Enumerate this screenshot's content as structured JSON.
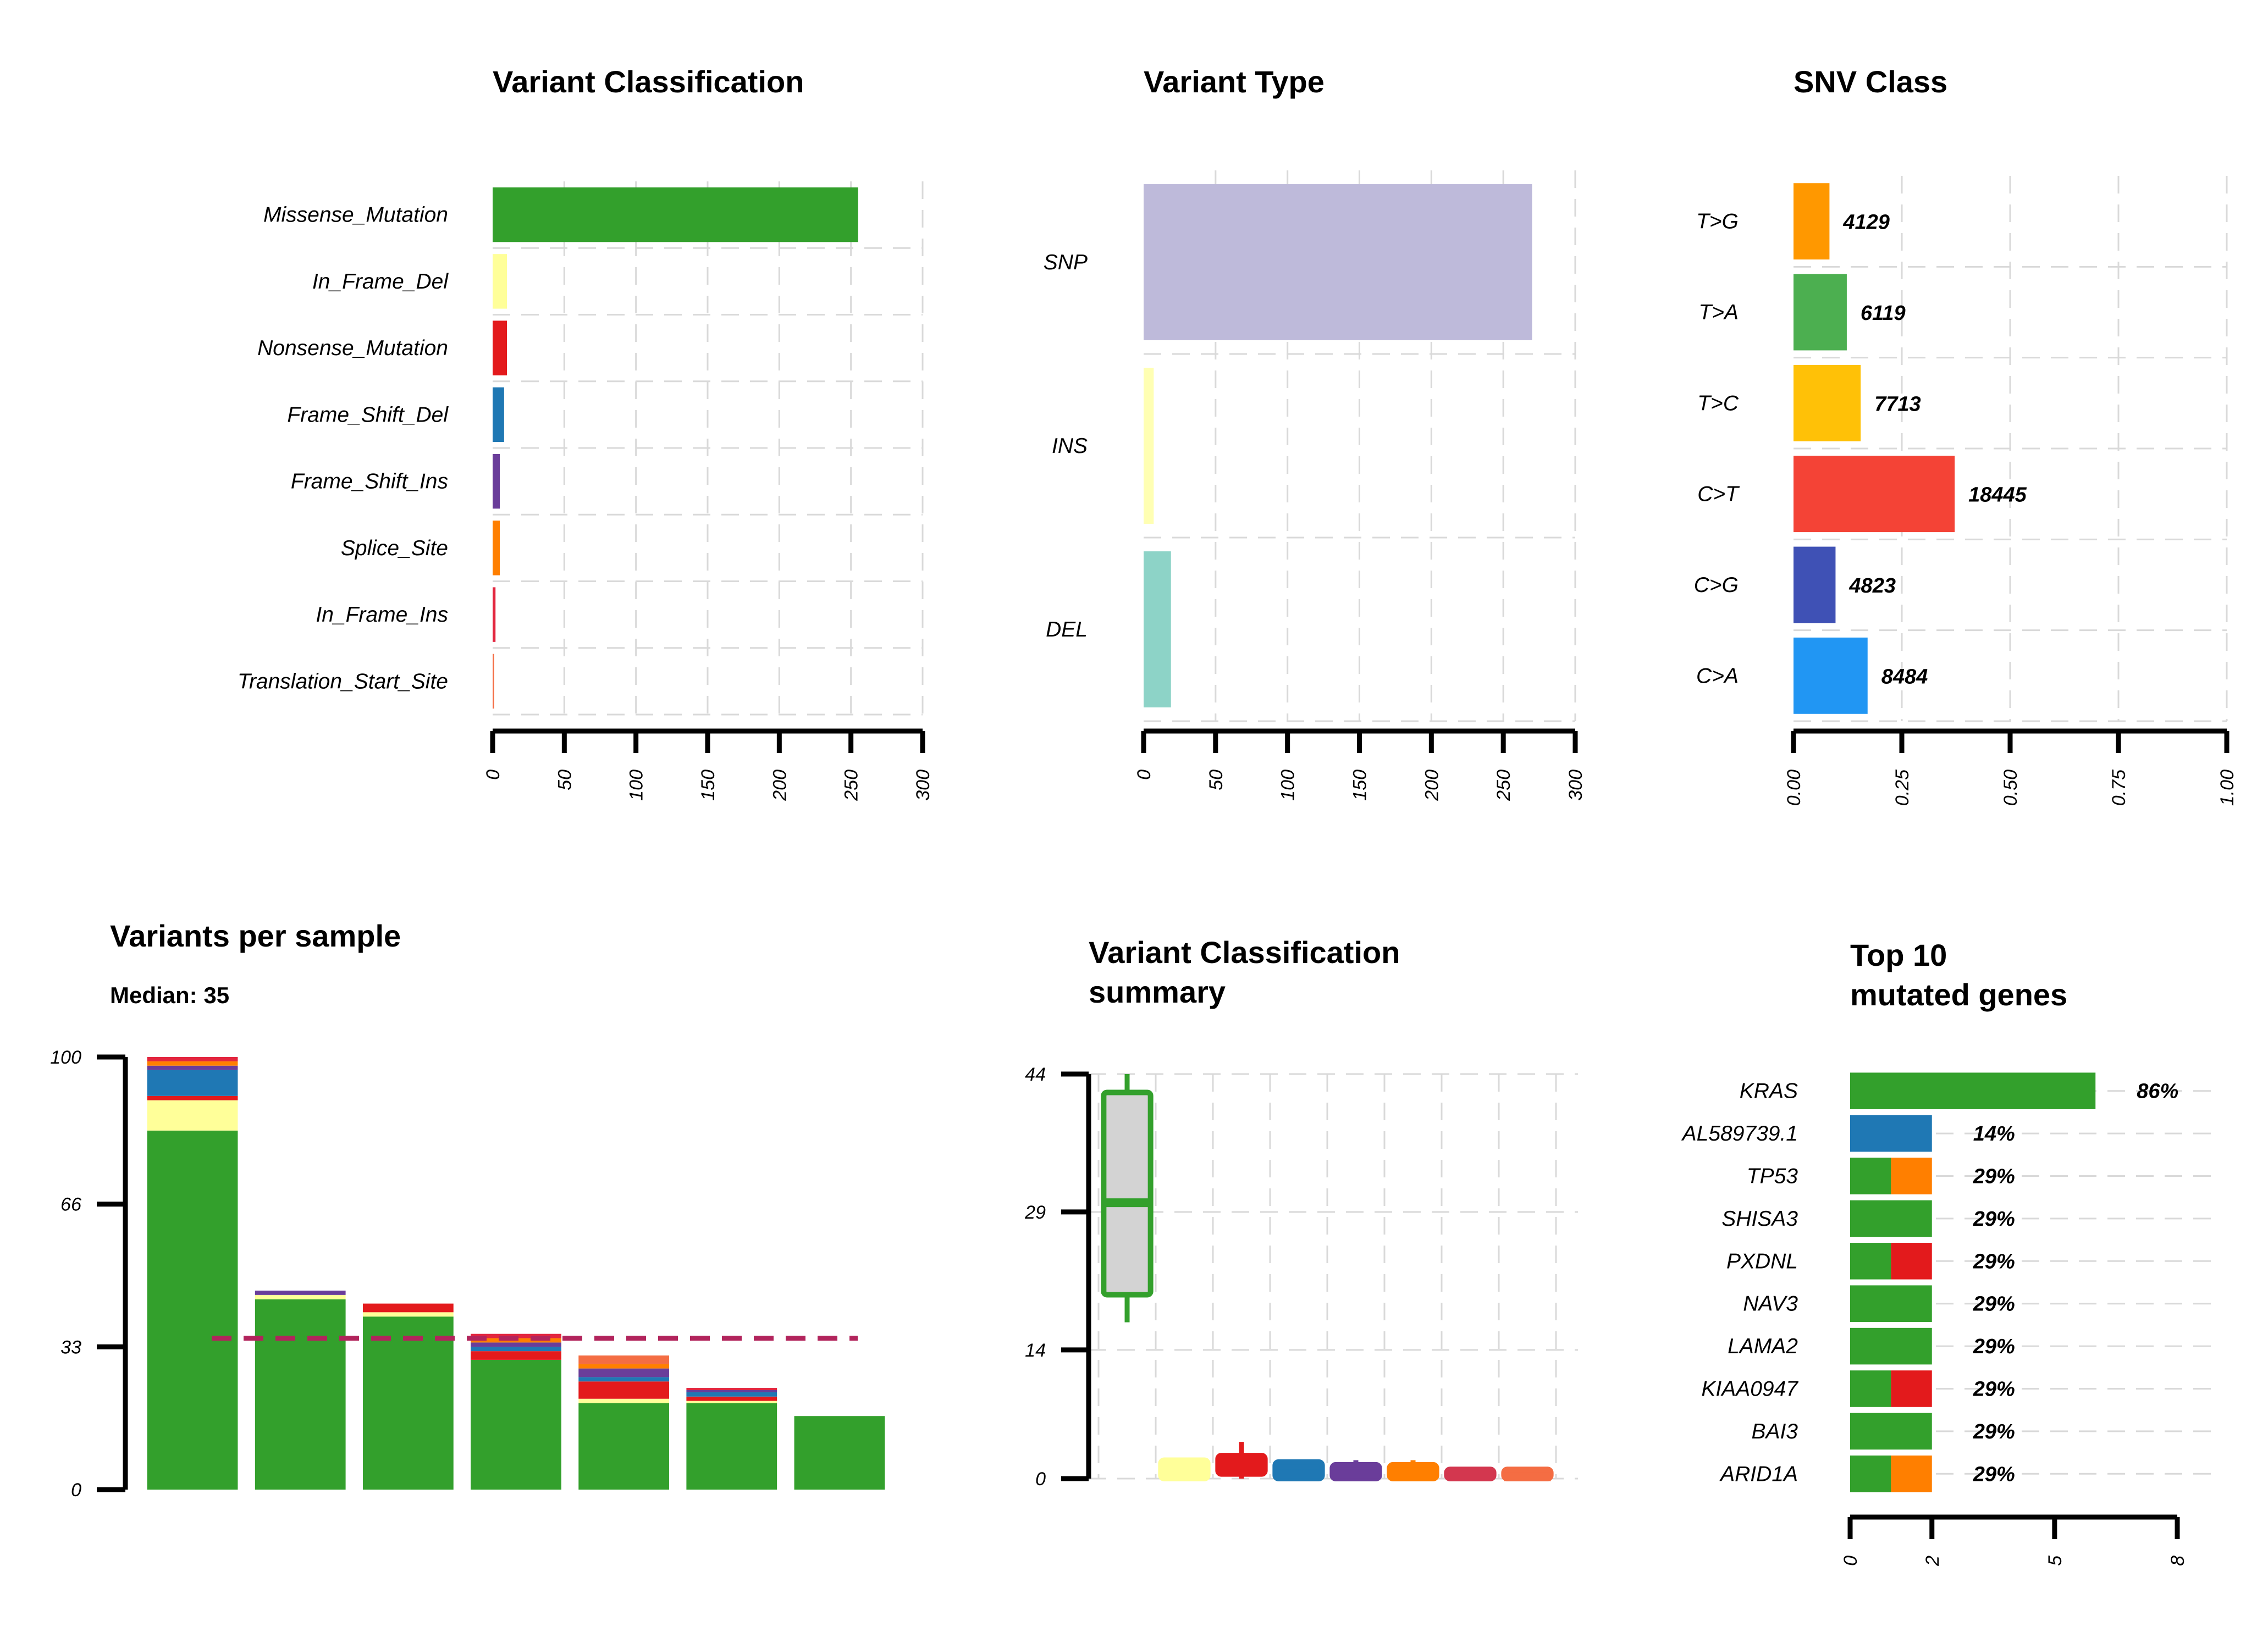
{
  "chart_data": [
    {
      "type": "bar",
      "title": "Variant Classification",
      "orientation": "horizontal",
      "categories": [
        "Missense_Mutation",
        "In_Frame_Del",
        "Nonsense_Mutation",
        "Frame_Shift_Del",
        "Frame_Shift_Ins",
        "Splice_Site",
        "In_Frame_Ins",
        "Translation_Start_Site"
      ],
      "values": [
        255,
        10,
        10,
        8,
        5,
        5,
        2,
        1
      ],
      "colors": [
        "#33a02c",
        "#ffff99",
        "#e31a1c",
        "#1f78b4",
        "#6a3d9a",
        "#ff7f00",
        "#e3263f",
        "#f46d43"
      ],
      "xlim": [
        0,
        300
      ],
      "xticks": [
        "0",
        "50",
        "100",
        "150",
        "200",
        "250",
        "300"
      ]
    },
    {
      "type": "bar",
      "title": "Variant Type",
      "orientation": "horizontal",
      "categories": [
        "SNP",
        "INS",
        "DEL"
      ],
      "values": [
        270,
        7,
        19
      ],
      "colors": [
        "#bebada",
        "#ffffb3",
        "#8dd3c7"
      ],
      "xlim": [
        0,
        300
      ],
      "xticks": [
        "0",
        "50",
        "100",
        "150",
        "200",
        "250",
        "300"
      ]
    },
    {
      "type": "bar",
      "title": "SNV Class",
      "orientation": "horizontal",
      "categories": [
        "T>G",
        "T>A",
        "T>C",
        "C>T",
        "C>G",
        "C>A"
      ],
      "values": [
        0.083,
        0.123,
        0.155,
        0.372,
        0.097,
        0.171
      ],
      "labels": [
        "4129",
        "6119",
        "7713",
        "18445",
        "4823",
        "8484"
      ],
      "colors": [
        "#ff9800",
        "#4caf50",
        "#ffc107",
        "#f44336",
        "#3f51b5",
        "#2196f3"
      ],
      "xlim": [
        0,
        1
      ],
      "xticks": [
        "0.00",
        "0.25",
        "0.50",
        "0.75",
        "1.00"
      ]
    },
    {
      "type": "bar",
      "stacked": true,
      "title": "Variants per sample",
      "subtitle": "Median: 35",
      "ylim": [
        0,
        100
      ],
      "yticks": [
        "0",
        "33",
        "66",
        "100"
      ],
      "median": 35,
      "median_color": "#b2245c",
      "segment_colors": {
        "Missense_Mutation": "#33a02c",
        "In_Frame_Del": "#ffff99",
        "Nonsense_Mutation": "#e31a1c",
        "Frame_Shift_Del": "#1f78b4",
        "Frame_Shift_Ins": "#6a3d9a",
        "Splice_Site": "#ff7f00",
        "In_Frame_Ins": "#e3263f",
        "Translation_Start_Site": "#f46d43"
      },
      "samples": [
        {
          "segments": [
            [
              "Missense_Mutation",
              83
            ],
            [
              "In_Frame_Del",
              7
            ],
            [
              "Nonsense_Mutation",
              1
            ],
            [
              "Frame_Shift_Del",
              6
            ],
            [
              "Frame_Shift_Ins",
              1
            ],
            [
              "Splice_Site",
              1
            ],
            [
              "In_Frame_Ins",
              1
            ]
          ]
        },
        {
          "segments": [
            [
              "Missense_Mutation",
              44
            ],
            [
              "In_Frame_Del",
              1
            ],
            [
              "Frame_Shift_Ins",
              1
            ]
          ]
        },
        {
          "segments": [
            [
              "Missense_Mutation",
              40
            ],
            [
              "In_Frame_Del",
              1
            ],
            [
              "Nonsense_Mutation",
              2
            ]
          ]
        },
        {
          "segments": [
            [
              "Missense_Mutation",
              30
            ],
            [
              "Nonsense_Mutation",
              2
            ],
            [
              "Frame_Shift_Del",
              1
            ],
            [
              "Frame_Shift_Ins",
              1
            ],
            [
              "Splice_Site",
              1
            ],
            [
              "In_Frame_Ins",
              1
            ]
          ]
        },
        {
          "segments": [
            [
              "Missense_Mutation",
              20
            ],
            [
              "In_Frame_Del",
              1
            ],
            [
              "Nonsense_Mutation",
              4
            ],
            [
              "Frame_Shift_Del",
              1
            ],
            [
              "Frame_Shift_Ins",
              2
            ],
            [
              "Splice_Site",
              1
            ],
            [
              "Translation_Start_Site",
              2
            ]
          ]
        },
        {
          "segments": [
            [
              "Missense_Mutation",
              20
            ],
            [
              "In_Frame_Del",
              0.5
            ],
            [
              "Nonsense_Mutation",
              1
            ],
            [
              "Frame_Shift_Del",
              1
            ],
            [
              "Frame_Shift_Ins",
              0.5
            ],
            [
              "In_Frame_Ins",
              0.5
            ]
          ]
        },
        {
          "segments": [
            [
              "Missense_Mutation",
              17
            ]
          ]
        }
      ]
    },
    {
      "type": "box",
      "title": [
        "Variant Classification",
        "summary"
      ],
      "ylim": [
        0,
        44
      ],
      "yticks": [
        "0",
        "14",
        "29",
        "44"
      ],
      "ytick_values": [
        0,
        14,
        29,
        44
      ],
      "boxes": [
        {
          "color": "#33a02c",
          "fill": "#d3d3d3",
          "min": 17,
          "q1": 20,
          "median": 30,
          "q3": 42,
          "max": 44
        },
        {
          "color": "#ffff99",
          "fill": "#ffff99",
          "min": 0,
          "q1": 0,
          "median": 1,
          "q3": 2,
          "max": 2
        },
        {
          "color": "#e31a1c",
          "fill": "#e31a1c",
          "min": 0,
          "q1": 0.5,
          "median": 1,
          "q3": 2.5,
          "max": 4
        },
        {
          "color": "#1f78b4",
          "fill": "#1f78b4",
          "min": 0,
          "q1": 0,
          "median": 0.5,
          "q3": 1.8,
          "max": 1.8
        },
        {
          "color": "#6a3d9a",
          "fill": "#6a3d9a",
          "min": 0,
          "q1": 0,
          "median": 0.5,
          "q3": 1.5,
          "max": 2
        },
        {
          "color": "#ff7f00",
          "fill": "#ff7f00",
          "min": 0,
          "q1": 0,
          "median": 0.5,
          "q3": 1.5,
          "max": 2
        },
        {
          "color": "#d3374f",
          "fill": "#d3374f",
          "min": 0,
          "q1": 0,
          "median": 0.3,
          "q3": 1,
          "max": 1
        },
        {
          "color": "#f46d43",
          "fill": "#f46d43",
          "min": 0,
          "q1": 0,
          "median": 0.2,
          "q3": 1,
          "max": 1
        }
      ]
    },
    {
      "type": "bar",
      "stacked": true,
      "orientation": "horizontal",
      "title": [
        "Top 10",
        "mutated genes"
      ],
      "xlim": [
        0,
        8
      ],
      "xticks": [
        "0",
        "2",
        "5",
        "8"
      ],
      "xtick_values": [
        0,
        2,
        5,
        8
      ],
      "genes": [
        {
          "name": "KRAS",
          "label": "86%",
          "segments": [
            [
              "#33a02c",
              6
            ]
          ]
        },
        {
          "name": "AL589739.1",
          "label": "14%",
          "segments": [
            [
              "#1f78b4",
              2
            ]
          ]
        },
        {
          "name": "TP53",
          "label": "29%",
          "segments": [
            [
              "#33a02c",
              1
            ],
            [
              "#ff7f00",
              1
            ]
          ]
        },
        {
          "name": "SHISA3",
          "label": "29%",
          "segments": [
            [
              "#33a02c",
              2
            ]
          ]
        },
        {
          "name": "PXDNL",
          "label": "29%",
          "segments": [
            [
              "#33a02c",
              1
            ],
            [
              "#e31a1c",
              1
            ]
          ]
        },
        {
          "name": "NAV3",
          "label": "29%",
          "segments": [
            [
              "#33a02c",
              2
            ]
          ]
        },
        {
          "name": "LAMA2",
          "label": "29%",
          "segments": [
            [
              "#33a02c",
              2
            ]
          ]
        },
        {
          "name": "KIAA0947",
          "label": "29%",
          "segments": [
            [
              "#33a02c",
              1
            ],
            [
              "#e31a1c",
              1
            ]
          ]
        },
        {
          "name": "BAI3",
          "label": "29%",
          "segments": [
            [
              "#33a02c",
              2
            ]
          ]
        },
        {
          "name": "ARID1A",
          "label": "29%",
          "segments": [
            [
              "#33a02c",
              1
            ],
            [
              "#ff7f00",
              1
            ]
          ]
        }
      ]
    }
  ]
}
